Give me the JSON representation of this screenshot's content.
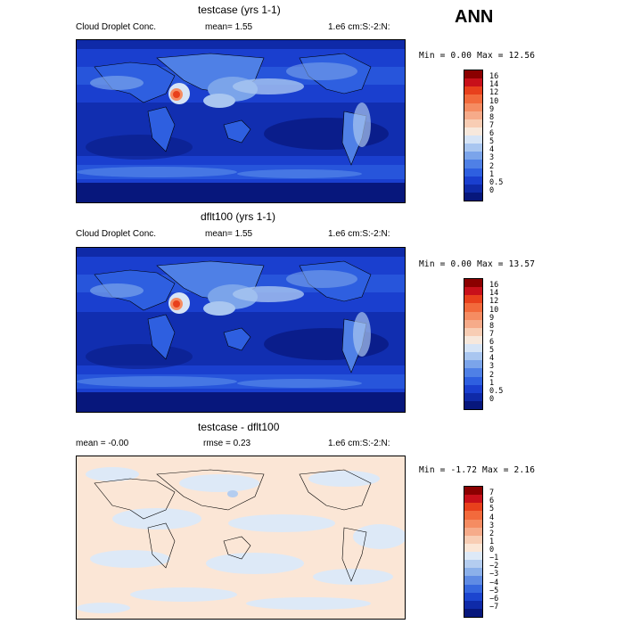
{
  "header": {
    "title": "ANN"
  },
  "panels": [
    {
      "title": "testcase (yrs 1-1)",
      "variable": "Cloud Droplet Conc.",
      "stat_left": "mean=   1.55",
      "units": "1.e6 cm:S:-2:N:",
      "minmax": "Min =   0.00 Max =  12.56",
      "kind": "field",
      "levels": [
        "16",
        "14",
        "12",
        "10",
        "9",
        "8",
        "7",
        "6",
        "5",
        "4",
        "3",
        "2",
        "1",
        "0.5",
        "0"
      ]
    },
    {
      "title": "dflt100 (yrs 1-1)",
      "variable": "Cloud Droplet Conc.",
      "stat_left": "mean=   1.55",
      "units": "1.e6 cm:S:-2:N:",
      "minmax": "Min =   0.00 Max =  13.57",
      "kind": "field",
      "levels": [
        "16",
        "14",
        "12",
        "10",
        "9",
        "8",
        "7",
        "6",
        "5",
        "4",
        "3",
        "2",
        "1",
        "0.5",
        "0"
      ]
    },
    {
      "title": "testcase - dflt100",
      "variable": "mean =  -0.00",
      "stat_left": "rmse =   0.23",
      "units": "1.e6 cm:S:-2:N:",
      "minmax": "Min =  -1.72 Max =   2.16",
      "kind": "diff",
      "levels": [
        "7",
        "6",
        "5",
        "4",
        "3",
        "2",
        "1",
        "0",
        "−1",
        "−2",
        "−3",
        "−4",
        "−5",
        "−6",
        "−7"
      ]
    }
  ],
  "colors": {
    "field_scale": [
      "#8b0000",
      "#c8101a",
      "#e8401c",
      "#f26a3c",
      "#f58c62",
      "#f6ab8a",
      "#f8cdb4",
      "#f7e8dc",
      "#d6e4f6",
      "#a9c6f0",
      "#7ba4ea",
      "#4f80e6",
      "#2e5fe0",
      "#1a3fcf",
      "#0f2aa8",
      "#07177c"
    ],
    "diff_scale": [
      "#8b0000",
      "#c8101a",
      "#e8401c",
      "#f26a3c",
      "#f58c62",
      "#f6ab8a",
      "#f8cdb4",
      "#fbe6d6",
      "#dde9f7",
      "#b4cdf0",
      "#8bb0ea",
      "#5f8be4",
      "#3667de",
      "#1c45cf",
      "#0f2aa8",
      "#07177c"
    ]
  }
}
